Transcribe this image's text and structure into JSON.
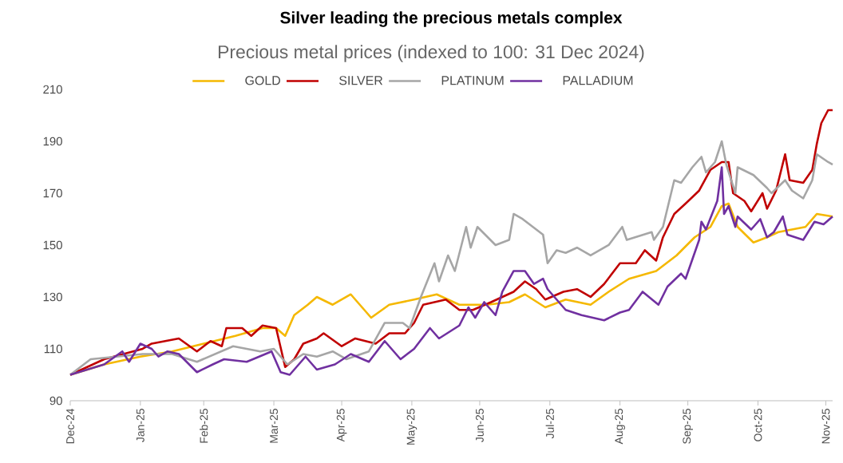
{
  "chart_data": {
    "type": "line",
    "title": "Silver leading the precious metals complex",
    "subtitle": "Precious metal prices (indexed to 100: 31 Dec 2024)",
    "xlim": [
      "2024-12-31",
      "2025-12-03"
    ],
    "xticks": [
      {
        "value": "2024-12-31",
        "label": "Dec-24"
      },
      {
        "value": "2025-01-31",
        "label": "Jan-25"
      },
      {
        "value": "2025-02-28",
        "label": "Feb-25"
      },
      {
        "value": "2025-03-31",
        "label": "Mar-25"
      },
      {
        "value": "2025-04-30",
        "label": "Apr-25"
      },
      {
        "value": "2025-05-31",
        "label": "May-25"
      },
      {
        "value": "2025-06-30",
        "label": "Jun-25"
      },
      {
        "value": "2025-07-31",
        "label": "Jul-25"
      },
      {
        "value": "2025-08-31",
        "label": "Aug-25"
      },
      {
        "value": "2025-09-30",
        "label": "Sep-25"
      },
      {
        "value": "2025-10-31",
        "label": "Oct-25"
      },
      {
        "value": "2025-11-30",
        "label": "Nov-25"
      }
    ],
    "ylim": [
      90,
      210
    ],
    "yticks": [
      90,
      110,
      130,
      150,
      170,
      190,
      210
    ],
    "legend": "top",
    "series": [
      {
        "name": "GOLD",
        "color": "#f5b800",
        "x": [
          "2024-12-31",
          "2025-01-15",
          "2025-01-31",
          "2025-02-14",
          "2025-02-28",
          "2025-03-14",
          "2025-03-26",
          "2025-04-01",
          "2025-04-05",
          "2025-04-09",
          "2025-04-15",
          "2025-04-19",
          "2025-04-26",
          "2025-05-04",
          "2025-05-13",
          "2025-05-21",
          "2025-06-01",
          "2025-06-11",
          "2025-06-21",
          "2025-07-03",
          "2025-07-13",
          "2025-07-20",
          "2025-07-29",
          "2025-08-07",
          "2025-08-18",
          "2025-08-26",
          "2025-09-04",
          "2025-09-16",
          "2025-09-25",
          "2025-10-03",
          "2025-10-10",
          "2025-10-15",
          "2025-10-18",
          "2025-10-22",
          "2025-10-29",
          "2025-11-04",
          "2025-11-09",
          "2025-11-21",
          "2025-11-26",
          "2025-12-03"
        ],
        "values": [
          100,
          104,
          107,
          109,
          112,
          115,
          118,
          118,
          115,
          123,
          127,
          130,
          127,
          131,
          122,
          127,
          129,
          131,
          127,
          127,
          128,
          131,
          126,
          129,
          127,
          132,
          137,
          140,
          146,
          153,
          157,
          165,
          166,
          157,
          151,
          153,
          155,
          157,
          162,
          161
        ]
      },
      {
        "name": "SILVER",
        "color": "#c00000",
        "x": [
          "2024-12-31",
          "2025-01-15",
          "2025-02-01",
          "2025-02-05",
          "2025-02-17",
          "2025-02-25",
          "2025-03-03",
          "2025-03-08",
          "2025-03-10",
          "2025-03-17",
          "2025-03-21",
          "2025-03-26",
          "2025-04-01",
          "2025-04-05",
          "2025-04-09",
          "2025-04-13",
          "2025-04-19",
          "2025-04-22",
          "2025-04-30",
          "2025-05-06",
          "2025-05-15",
          "2025-05-21",
          "2025-05-28",
          "2025-06-01",
          "2025-06-05",
          "2025-06-15",
          "2025-06-21",
          "2025-06-27",
          "2025-07-05",
          "2025-07-15",
          "2025-07-20",
          "2025-07-25",
          "2025-07-29",
          "2025-08-06",
          "2025-08-12",
          "2025-08-18",
          "2025-08-24",
          "2025-08-31",
          "2025-09-07",
          "2025-09-11",
          "2025-09-16",
          "2025-09-19",
          "2025-09-24",
          "2025-09-29",
          "2025-10-05",
          "2025-10-10",
          "2025-10-15",
          "2025-10-18",
          "2025-10-20",
          "2025-10-25",
          "2025-10-28",
          "2025-11-02",
          "2025-11-04",
          "2025-11-08",
          "2025-11-12",
          "2025-11-14",
          "2025-11-20",
          "2025-11-24",
          "2025-11-26",
          "2025-11-28",
          "2025-12-01",
          "2025-12-03"
        ],
        "values": [
          100,
          106,
          110,
          112,
          114,
          109,
          113,
          111,
          118,
          118,
          115,
          119,
          118,
          103,
          106,
          112,
          114,
          116,
          111,
          114,
          112,
          116,
          116,
          120,
          127,
          129,
          125,
          125,
          128,
          132,
          136,
          133,
          129,
          132,
          133,
          130,
          135,
          143,
          143,
          148,
          144,
          153,
          162,
          166,
          171,
          179,
          182,
          182,
          170,
          167,
          163,
          170,
          164,
          171,
          185,
          175,
          174,
          179,
          189,
          197,
          202,
          202
        ]
      },
      {
        "name": "PLATINUM",
        "color": "#a6a6a6",
        "x": [
          "2024-12-31",
          "2025-01-09",
          "2025-02-01",
          "2025-02-14",
          "2025-02-25",
          "2025-03-13",
          "2025-03-25",
          "2025-03-31",
          "2025-04-06",
          "2025-04-13",
          "2025-04-19",
          "2025-04-26",
          "2025-05-02",
          "2025-05-12",
          "2025-05-19",
          "2025-05-27",
          "2025-05-30",
          "2025-06-04",
          "2025-06-10",
          "2025-06-12",
          "2025-06-16",
          "2025-06-19",
          "2025-06-24",
          "2025-06-26",
          "2025-06-29",
          "2025-07-07",
          "2025-07-13",
          "2025-07-15",
          "2025-07-19",
          "2025-07-28",
          "2025-07-30",
          "2025-08-03",
          "2025-08-07",
          "2025-08-12",
          "2025-08-18",
          "2025-08-26",
          "2025-09-01",
          "2025-09-03",
          "2025-09-14",
          "2025-09-15",
          "2025-09-19",
          "2025-09-24",
          "2025-09-27",
          "2025-10-02",
          "2025-10-06",
          "2025-10-08",
          "2025-10-12",
          "2025-10-15",
          "2025-10-17",
          "2025-10-21",
          "2025-10-22",
          "2025-10-29",
          "2025-11-04",
          "2025-11-06",
          "2025-11-12",
          "2025-11-15",
          "2025-11-20",
          "2025-11-24",
          "2025-11-26",
          "2025-12-01",
          "2025-12-03"
        ],
        "values": [
          100,
          106,
          108,
          108,
          105,
          111,
          109,
          110,
          104,
          108,
          107,
          109,
          106,
          109,
          120,
          120,
          118,
          130,
          143,
          136,
          146,
          140,
          157,
          149,
          157,
          150,
          152,
          162,
          160,
          154,
          143,
          148,
          147,
          149,
          146,
          150,
          157,
          152,
          155,
          152,
          157,
          175,
          174,
          180,
          184,
          178,
          182,
          190,
          181,
          170,
          180,
          177,
          172,
          170,
          175,
          171,
          168,
          175,
          185,
          182,
          181
        ]
      },
      {
        "name": "PALLADIUM",
        "color": "#7030a0",
        "x": [
          "2024-12-31",
          "2025-01-15",
          "2025-01-23",
          "2025-01-26",
          "2025-01-31",
          "2025-02-05",
          "2025-02-08",
          "2025-02-12",
          "2025-02-17",
          "2025-02-25",
          "2025-03-04",
          "2025-03-09",
          "2025-03-19",
          "2025-03-30",
          "2025-04-03",
          "2025-04-07",
          "2025-04-14",
          "2025-04-19",
          "2025-04-27",
          "2025-05-04",
          "2025-05-12",
          "2025-05-19",
          "2025-05-26",
          "2025-06-01",
          "2025-06-08",
          "2025-06-12",
          "2025-06-21",
          "2025-06-25",
          "2025-06-28",
          "2025-07-02",
          "2025-07-07",
          "2025-07-10",
          "2025-07-15",
          "2025-07-20",
          "2025-07-24",
          "2025-07-28",
          "2025-07-30",
          "2025-08-05",
          "2025-08-07",
          "2025-08-14",
          "2025-08-24",
          "2025-08-31",
          "2025-09-04",
          "2025-09-10",
          "2025-09-17",
          "2025-09-21",
          "2025-09-27",
          "2025-09-29",
          "2025-10-05",
          "2025-10-06",
          "2025-10-08",
          "2025-10-13",
          "2025-10-15",
          "2025-10-16",
          "2025-10-18",
          "2025-10-21",
          "2025-10-22",
          "2025-10-28",
          "2025-11-01",
          "2025-11-04",
          "2025-11-07",
          "2025-11-11",
          "2025-11-13",
          "2025-11-20",
          "2025-11-25",
          "2025-11-29",
          "2025-12-03"
        ],
        "values": [
          100,
          104,
          109,
          105,
          112,
          110,
          107,
          109,
          108,
          101,
          104,
          106,
          105,
          109,
          101,
          100,
          107,
          102,
          104,
          108,
          105,
          113,
          106,
          110,
          118,
          114,
          119,
          126,
          122,
          128,
          123,
          132,
          140,
          140,
          135,
          137,
          133,
          127,
          125,
          123,
          121,
          124,
          125,
          132,
          127,
          134,
          139,
          137,
          152,
          159,
          156,
          167,
          180,
          162,
          165,
          157,
          161,
          156,
          160,
          153,
          155,
          161,
          154,
          152,
          159,
          158,
          161
        ]
      }
    ]
  }
}
